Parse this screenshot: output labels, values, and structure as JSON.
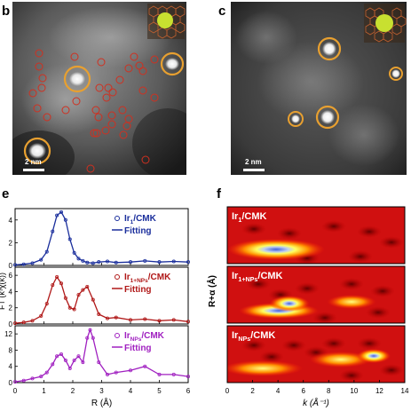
{
  "panels": {
    "b": {
      "letter": "b",
      "scale_bar": "2 nm"
    },
    "c": {
      "letter": "c",
      "scale_bar": "2 nm"
    },
    "e": {
      "letter": "e"
    },
    "f": {
      "letter": "f"
    }
  },
  "colors": {
    "ir1": "#1a2e9c",
    "ir1nps": "#b01818",
    "irnps": "#a020c0",
    "circle_orange": "#e8a030",
    "circle_red": "#d03020"
  },
  "chart_data": [
    {
      "type": "line",
      "panel": "e",
      "xlabel": "R (Å)",
      "ylabel": "FT (k³χ(k))",
      "xlim": [
        0,
        6
      ],
      "x_ticks": [
        "0",
        "1",
        "2",
        "3",
        "4",
        "5",
        "6"
      ],
      "subplots": [
        {
          "ylim": [
            0,
            5
          ],
          "y_ticks": [
            "0",
            "2",
            "4"
          ],
          "legend": [
            {
              "sub": "Ir",
              "suffix": "1",
              "tail": "/CMK"
            },
            {
              "sub": "Fitting",
              "suffix": "",
              "tail": ""
            }
          ],
          "series": [
            {
              "x": [
                0.0,
                0.3,
                0.6,
                0.9,
                1.1,
                1.3,
                1.45,
                1.6,
                1.75,
                1.9,
                2.05,
                2.2,
                2.35,
                2.5,
                2.7,
                2.9,
                3.2,
                3.5,
                4.0,
                4.5,
                5.0,
                5.5,
                6.0
              ],
              "y": [
                0.05,
                0.1,
                0.2,
                0.5,
                1.2,
                3.0,
                4.4,
                4.7,
                4.0,
                2.3,
                1.1,
                0.6,
                0.4,
                0.25,
                0.2,
                0.3,
                0.35,
                0.25,
                0.3,
                0.4,
                0.3,
                0.35,
                0.3
              ]
            }
          ]
        },
        {
          "ylim": [
            0,
            7
          ],
          "y_ticks": [
            "0",
            "2",
            "4",
            "6"
          ],
          "legend": [
            {
              "sub": "Ir",
              "suffix": "1+NPs",
              "tail": "/CMK"
            },
            {
              "sub": "Fitting",
              "suffix": "",
              "tail": ""
            }
          ],
          "series": [
            {
              "x": [
                0.0,
                0.3,
                0.6,
                0.9,
                1.1,
                1.3,
                1.45,
                1.6,
                1.75,
                1.9,
                2.05,
                2.2,
                2.35,
                2.5,
                2.7,
                2.9,
                3.2,
                3.5,
                4.0,
                4.5,
                5.0,
                5.5,
                6.0
              ],
              "y": [
                0.1,
                0.2,
                0.4,
                1.0,
                2.5,
                4.8,
                5.8,
                5.0,
                3.2,
                2.0,
                1.8,
                3.6,
                4.2,
                4.6,
                3.0,
                1.2,
                0.7,
                0.8,
                0.5,
                0.6,
                0.4,
                0.5,
                0.3
              ]
            }
          ]
        },
        {
          "ylim": [
            0,
            14
          ],
          "y_ticks": [
            "0",
            "4",
            "8",
            "12"
          ],
          "legend": [
            {
              "sub": "Ir",
              "suffix": "NPs",
              "tail": "/CMK"
            },
            {
              "sub": "Fitting",
              "suffix": "",
              "tail": ""
            }
          ],
          "series": [
            {
              "x": [
                0.0,
                0.3,
                0.6,
                0.9,
                1.1,
                1.3,
                1.45,
                1.6,
                1.75,
                1.9,
                2.05,
                2.2,
                2.35,
                2.5,
                2.6,
                2.7,
                2.9,
                3.2,
                3.5,
                4.0,
                4.5,
                5.0,
                5.5,
                6.0
              ],
              "y": [
                0.2,
                0.5,
                1.0,
                1.5,
                2.5,
                4.5,
                6.5,
                7.0,
                5.5,
                3.5,
                5.5,
                6.5,
                5.0,
                11.0,
                13.0,
                11.0,
                5.0,
                2.0,
                2.5,
                3.0,
                4.0,
                2.0,
                2.0,
                1.5
              ]
            }
          ]
        }
      ]
    },
    {
      "type": "heatmap",
      "panel": "f",
      "xlabel": "k (Å⁻¹)",
      "ylabel": "R+α (Å)",
      "xlim": [
        0,
        14
      ],
      "x_ticks": [
        "0",
        "2",
        "4",
        "6",
        "8",
        "10",
        "12",
        "14"
      ],
      "subplots": [
        {
          "label": {
            "sub": "Ir",
            "suffix": "1",
            "tail": "/CMK"
          }
        },
        {
          "label": {
            "sub": "Ir",
            "suffix": "1+NPs",
            "tail": "/CMK"
          }
        },
        {
          "label": {
            "sub": "Ir",
            "suffix": "NPs",
            "tail": "/CMK"
          }
        }
      ]
    }
  ]
}
